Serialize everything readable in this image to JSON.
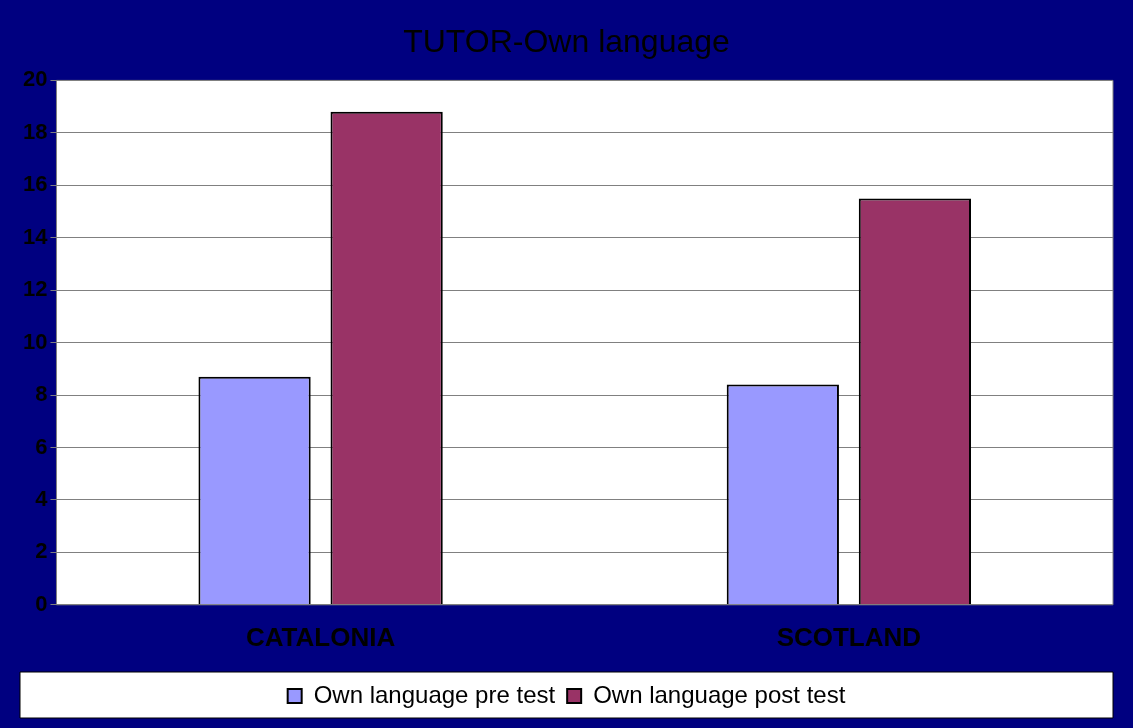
{
  "chart_data": {
    "type": "bar",
    "title": "TUTOR-Own language",
    "categories": [
      "CATALONIA",
      "SCOTLAND"
    ],
    "series": [
      {
        "name": "Own language pre test",
        "color": "#9999ff",
        "values": [
          8.7,
          8.4
        ]
      },
      {
        "name": "Own language post test",
        "color": "#993366",
        "values": [
          18.8,
          15.5
        ]
      }
    ],
    "ylim": [
      0,
      20
    ],
    "yticks": [
      0,
      2,
      4,
      6,
      8,
      10,
      12,
      14,
      16,
      18,
      20
    ],
    "grid": "y",
    "legend": "bottom"
  }
}
